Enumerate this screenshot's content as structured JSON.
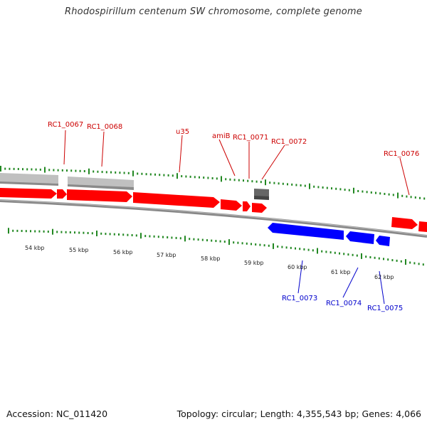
{
  "header": {
    "title": "Rhodospirillum centenum SW chromosome, complete genome"
  },
  "footer": {
    "accession": "Accession: NC_011420",
    "summary": "Topology: circular; Length: 4,355,543 bp; Genes: 4,066"
  },
  "colors": {
    "forward_strand": "#ff0000",
    "reverse_strand": "#0000ff",
    "gene_label_forward": "#cc0000",
    "gene_label_reverse": "#0000cc",
    "tick": "#228822",
    "backbone": "#888888",
    "rna_feature": "#c0c0c0",
    "other_feature": "#666666"
  },
  "scale_labels": [
    "54 kbp",
    "55 kbp",
    "56 kbp",
    "57 kbp",
    "58 kbp",
    "59 kbp",
    "60 kbp",
    "61 kbp",
    "62 kbp"
  ],
  "gene_labels_forward": [
    "RC1_0067",
    "RC1_0068",
    "u35",
    "amiB",
    "RC1_0071",
    "RC1_0072",
    "RC1_0076"
  ],
  "gene_labels_reverse": [
    "RC1_0073",
    "RC1_0074",
    "RC1_0075"
  ]
}
